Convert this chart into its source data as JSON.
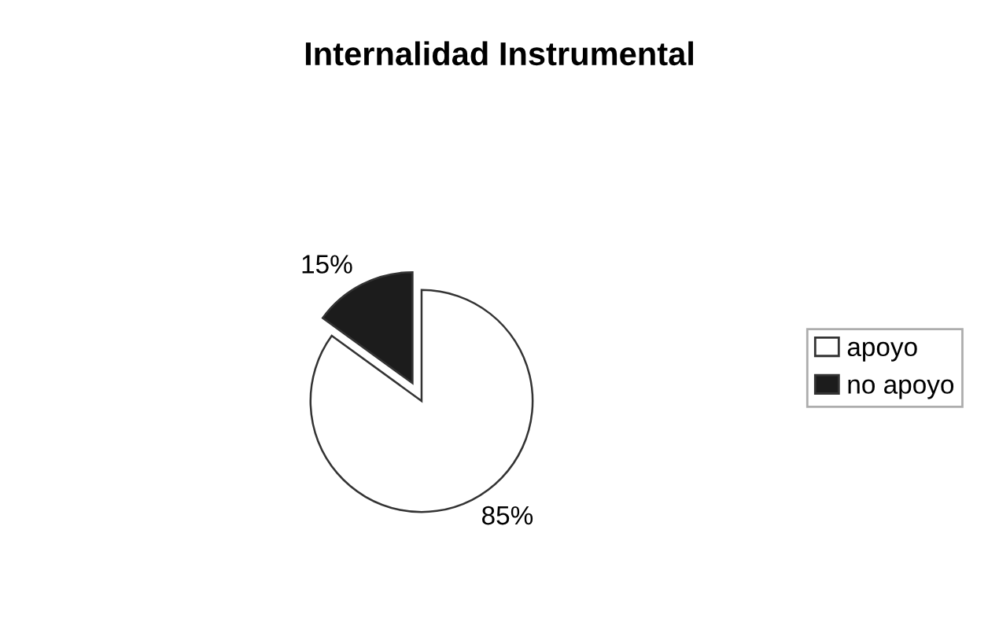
{
  "chart_data": {
    "type": "pie",
    "title": "Internalidad Instrumental",
    "categories": [
      "apoyo",
      "no apoyo"
    ],
    "values": [
      85,
      15
    ],
    "colors": [
      "#ffffff",
      "#1c1c1c"
    ],
    "value_labels": [
      "85%",
      "15%"
    ],
    "legend": "right"
  }
}
